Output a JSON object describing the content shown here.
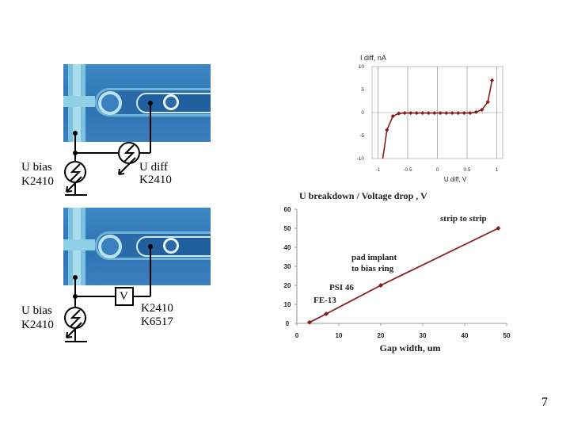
{
  "page_number": "7",
  "circuit_top": {
    "ubias_label": "U bias",
    "ubias_instr": "K2410",
    "udiff_label": "U diff",
    "udiff_instr": "K2410"
  },
  "circuit_bottom": {
    "ubias_label": "U bias",
    "ubias_instr": "K2410",
    "meter_symbol": "V",
    "instr1": "K2410",
    "instr2": "K6517"
  },
  "colors": {
    "photo_blue": "#3478b8",
    "series": "#8b1c1c"
  },
  "chart_data": [
    {
      "type": "line",
      "title": "I diff, nA",
      "xlabel": "U diff, V",
      "ylabel": "",
      "xlim": [
        -1.1,
        1.1
      ],
      "ylim": [
        -10,
        10
      ],
      "xticks": [
        -1,
        -0.5,
        0,
        0.5,
        1
      ],
      "xtick_labels": [
        "-1",
        "-0.5",
        "0",
        "0.5",
        "1"
      ],
      "yticks": [
        -10,
        -5,
        0,
        5,
        10
      ],
      "ytick_labels": [
        "-10",
        "-5",
        "0",
        "5",
        "10"
      ],
      "grid": "vertical",
      "x": [
        -0.92,
        -0.85,
        -0.75,
        -0.65,
        -0.55,
        -0.45,
        -0.35,
        -0.25,
        -0.15,
        -0.05,
        0.05,
        0.15,
        0.25,
        0.35,
        0.45,
        0.55,
        0.65,
        0.75,
        0.85,
        0.92
      ],
      "y": [
        -10,
        -3.8,
        -0.8,
        -0.2,
        -0.1,
        -0.1,
        -0.1,
        -0.1,
        -0.1,
        -0.1,
        -0.1,
        -0.1,
        -0.1,
        -0.1,
        -0.1,
        -0.1,
        0.1,
        0.6,
        2.3,
        7.0
      ]
    },
    {
      "type": "line",
      "title": "U breakdown / Voltage drop , V",
      "xlabel": "Gap width, um",
      "ylabel": "",
      "xlim": [
        0,
        50
      ],
      "ylim": [
        0,
        60
      ],
      "xticks": [
        0,
        10,
        20,
        30,
        40,
        50
      ],
      "xtick_labels": [
        "0",
        "10",
        "20",
        "30",
        "40",
        "50"
      ],
      "yticks": [
        0,
        10,
        20,
        30,
        40,
        50,
        60
      ],
      "ytick_labels": [
        "0",
        "10",
        "20",
        "30",
        "40",
        "50",
        "60"
      ],
      "grid": "none",
      "x": [
        3,
        7,
        20,
        48
      ],
      "y": [
        0.5,
        5,
        20,
        50
      ],
      "annotations": [
        "strip to strip",
        "pad implant",
        "to bias ring",
        "PSI 46",
        "FE-13"
      ]
    }
  ]
}
